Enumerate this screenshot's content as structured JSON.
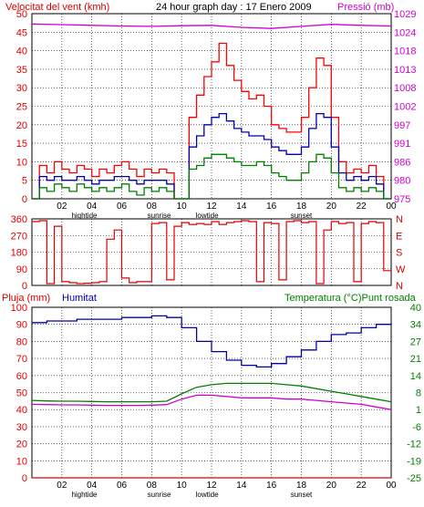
{
  "header": {
    "left_title": "Velocitat del vent (kmh)",
    "center_title": "24 hour graph day : 17 Enero 2009",
    "right_title": "Pressió (mb)"
  },
  "colors": {
    "background": "#ffffff",
    "grid": "#000000",
    "wind_max": "#ff0000",
    "wind_avg": "#0000aa",
    "wind_min": "#008000",
    "pressure": "#d000d0",
    "direction": "#dd0000",
    "humidity": "#0000aa",
    "temperature": "#008000",
    "dewpoint": "#d000d0",
    "rain": "#dd0000",
    "left_axis_text": "#dd0000",
    "right_axis_text": "#d000d0",
    "temp_axis_text": "#008000"
  },
  "x_axis": {
    "ticks": [
      "02",
      "04",
      "06",
      "08",
      "10",
      "12",
      "14",
      "16",
      "18",
      "20",
      "22",
      "00"
    ],
    "tick_hours": [
      2,
      4,
      6,
      8,
      10,
      12,
      14,
      16,
      18,
      20,
      22,
      24
    ],
    "events": [
      {
        "label": "hightide",
        "hour": 3.5
      },
      {
        "label": "sunrise",
        "hour": 8.5
      },
      {
        "label": "lowtide",
        "hour": 11.7
      },
      {
        "label": "sunset",
        "hour": 18.0
      }
    ]
  },
  "chart_data": [
    {
      "type": "line",
      "title": "Velocitat del vent (kmh)",
      "y_left": {
        "label": "Velocitat del vent (kmh)",
        "ticks": [
          0,
          5,
          10,
          15,
          20,
          25,
          30,
          35,
          40,
          45,
          50
        ],
        "range": [
          0,
          50
        ]
      },
      "y_right": {
        "label": "Pressió (mb)",
        "ticks": [
          975,
          980,
          986,
          991,
          997,
          1002,
          1008,
          1013,
          1018,
          1024,
          1029
        ],
        "range": [
          975,
          1029
        ]
      },
      "series": [
        {
          "name": "max",
          "axis": "left",
          "x": [
            0.0,
            0.5,
            1.0,
            1.5,
            2.0,
            2.5,
            3.0,
            3.5,
            4.0,
            4.5,
            5.0,
            5.5,
            6.0,
            6.5,
            7.0,
            7.5,
            8.0,
            8.5,
            9.0,
            9.5,
            10.0,
            10.5,
            11.0,
            11.5,
            12.0,
            12.5,
            13.0,
            13.5,
            14.0,
            14.5,
            15.0,
            15.5,
            16.0,
            16.5,
            17.0,
            17.5,
            18.0,
            18.5,
            19.0,
            19.5,
            20.0,
            20.5,
            21.0,
            21.5,
            22.0,
            22.5,
            23.0,
            23.5
          ],
          "y": [
            0,
            9,
            7,
            10,
            8,
            7,
            9,
            8,
            6,
            8,
            7,
            9,
            10,
            8,
            6,
            8,
            7,
            8,
            7,
            0,
            0,
            22,
            28,
            33,
            37,
            42,
            36,
            32,
            29,
            27,
            28,
            25,
            20,
            19,
            18,
            18,
            22,
            30,
            38,
            36,
            22,
            10,
            7,
            8,
            7,
            9,
            6,
            0
          ]
        },
        {
          "name": "avg",
          "axis": "left",
          "x": [
            0.0,
            0.5,
            1.0,
            1.5,
            2.0,
            2.5,
            3.0,
            3.5,
            4.0,
            4.5,
            5.0,
            5.5,
            6.0,
            6.5,
            7.0,
            7.5,
            8.0,
            8.5,
            9.0,
            9.5,
            10.0,
            10.5,
            11.0,
            11.5,
            12.0,
            12.5,
            13.0,
            13.5,
            14.0,
            14.5,
            15.0,
            15.5,
            16.0,
            16.5,
            17.0,
            17.5,
            18.0,
            18.5,
            19.0,
            19.5,
            20.0,
            20.5,
            21.0,
            21.5,
            22.0,
            22.5,
            23.0,
            23.5
          ],
          "y": [
            0,
            6,
            5,
            6,
            5,
            5,
            6,
            5,
            4,
            5,
            5,
            6,
            6,
            5,
            4,
            5,
            5,
            5,
            4,
            0,
            0,
            14,
            17,
            20,
            22,
            23,
            21,
            19,
            18,
            17,
            17,
            16,
            14,
            13,
            12,
            12,
            14,
            19,
            23,
            22,
            14,
            7,
            5,
            6,
            5,
            6,
            4,
            0
          ]
        },
        {
          "name": "min",
          "axis": "left",
          "x": [
            0.0,
            0.5,
            1.0,
            1.5,
            2.0,
            2.5,
            3.0,
            3.5,
            4.0,
            4.5,
            5.0,
            5.5,
            6.0,
            6.5,
            7.0,
            7.5,
            8.0,
            8.5,
            9.0,
            9.5,
            10.0,
            10.5,
            11.0,
            11.5,
            12.0,
            12.5,
            13.0,
            13.5,
            14.0,
            14.5,
            15.0,
            15.5,
            16.0,
            16.5,
            17.0,
            17.5,
            18.0,
            18.5,
            19.0,
            19.5,
            20.0,
            20.5,
            21.0,
            21.5,
            22.0,
            22.5,
            23.0,
            23.5
          ],
          "y": [
            0,
            3,
            2,
            4,
            3,
            2,
            4,
            3,
            2,
            3,
            2,
            3,
            4,
            2,
            1,
            3,
            2,
            3,
            2,
            0,
            0,
            8,
            9,
            11,
            12,
            12,
            11,
            10,
            9,
            9,
            10,
            9,
            7,
            6,
            5,
            5,
            7,
            10,
            12,
            11,
            7,
            3,
            2,
            3,
            2,
            3,
            2,
            0
          ]
        },
        {
          "name": "pressure",
          "axis": "right",
          "x": [
            0,
            2,
            4,
            6,
            8,
            10,
            12,
            14,
            16,
            18,
            20,
            22,
            24
          ],
          "y": [
            1026.0,
            1025.8,
            1025.6,
            1025.4,
            1025.3,
            1025.5,
            1025.6,
            1025.0,
            1024.7,
            1025.3,
            1025.9,
            1025.6,
            1025.4
          ]
        }
      ]
    },
    {
      "type": "line",
      "title": "",
      "y_left": {
        "ticks": [
          0,
          90,
          180,
          270,
          360
        ],
        "range": [
          0,
          360
        ]
      },
      "y_right": {
        "ticks": [
          "N",
          "W",
          "S",
          "E",
          "N"
        ]
      },
      "series": [
        {
          "name": "direction",
          "x": [
            0.0,
            0.5,
            1.0,
            1.5,
            2.0,
            2.5,
            3.0,
            3.5,
            4.0,
            4.5,
            5.0,
            5.5,
            6.0,
            6.5,
            7.0,
            7.5,
            8.0,
            8.5,
            9.0,
            9.5,
            10.0,
            10.5,
            11.0,
            11.5,
            12.0,
            12.5,
            13.0,
            13.5,
            14.0,
            14.5,
            15.0,
            15.5,
            16.0,
            16.5,
            17.0,
            17.5,
            18.0,
            18.5,
            19.0,
            19.5,
            20.0,
            20.5,
            21.0,
            21.5,
            22.0,
            22.5,
            23.0,
            23.5
          ],
          "y": [
            345,
            350,
            10,
            320,
            20,
            15,
            10,
            12,
            15,
            20,
            250,
            300,
            40,
            15,
            20,
            20,
            335,
            340,
            30,
            320,
            340,
            330,
            335,
            330,
            345,
            330,
            340,
            345,
            350,
            345,
            20,
            340,
            335,
            30,
            345,
            350,
            340,
            345,
            10,
            300,
            345,
            335,
            340,
            20,
            335,
            345,
            340,
            80
          ]
        }
      ]
    },
    {
      "type": "line",
      "title": "",
      "y_left": {
        "label": "Pluja (mm)",
        "ticks": [
          0,
          10,
          20,
          30,
          40,
          50,
          60,
          70,
          80,
          90,
          100
        ],
        "range": [
          0,
          100
        ]
      },
      "y_left_label_2": "Humitat",
      "y_right": {
        "label": "Temperatura (°C)Punt rosada",
        "ticks": [
          -25,
          -19,
          -12,
          -6,
          1,
          8,
          14,
          21,
          27,
          34,
          40
        ],
        "range": [
          -25,
          40
        ]
      },
      "series": [
        {
          "name": "humidity",
          "axis": "left",
          "x": [
            0,
            1,
            2,
            3,
            4,
            5,
            6,
            7,
            8,
            9,
            10,
            11,
            12,
            13,
            14,
            15,
            16,
            17,
            18,
            19,
            20,
            21,
            22,
            23,
            24
          ],
          "y": [
            91,
            92,
            92,
            93,
            93,
            93,
            94,
            94,
            95,
            94,
            88,
            80,
            74,
            69,
            66,
            65,
            67,
            71,
            75,
            80,
            84,
            85,
            88,
            90,
            91
          ]
        },
        {
          "name": "temperature",
          "axis": "right",
          "x": [
            0,
            1,
            2,
            3,
            4,
            5,
            6,
            7,
            8,
            9,
            10,
            11,
            12,
            13,
            14,
            15,
            16,
            17,
            18,
            19,
            20,
            21,
            22,
            23,
            24
          ],
          "y": [
            4.5,
            4.3,
            4.2,
            4.2,
            4.1,
            4.0,
            4.0,
            4.0,
            4.0,
            4.2,
            7.0,
            9.5,
            10.5,
            11.0,
            11.0,
            11.0,
            11.0,
            10.5,
            10.0,
            9.0,
            8.0,
            7.0,
            6.0,
            5.0,
            4.0
          ]
        },
        {
          "name": "dewpoint",
          "axis": "right",
          "x": [
            0,
            1,
            2,
            3,
            4,
            5,
            6,
            7,
            8,
            9,
            10,
            11,
            12,
            13,
            14,
            15,
            16,
            17,
            18,
            19,
            20,
            21,
            22,
            23,
            24
          ],
          "y": [
            3.0,
            2.9,
            2.8,
            2.8,
            2.7,
            2.6,
            2.6,
            2.6,
            2.7,
            2.9,
            5.0,
            6.5,
            6.5,
            6.0,
            5.5,
            5.5,
            5.5,
            5.0,
            5.0,
            4.5,
            4.0,
            3.5,
            3.0,
            2.0,
            1.0
          ]
        },
        {
          "name": "rain",
          "axis": "left",
          "x": [
            0,
            24
          ],
          "y": [
            0,
            0
          ]
        }
      ]
    }
  ]
}
